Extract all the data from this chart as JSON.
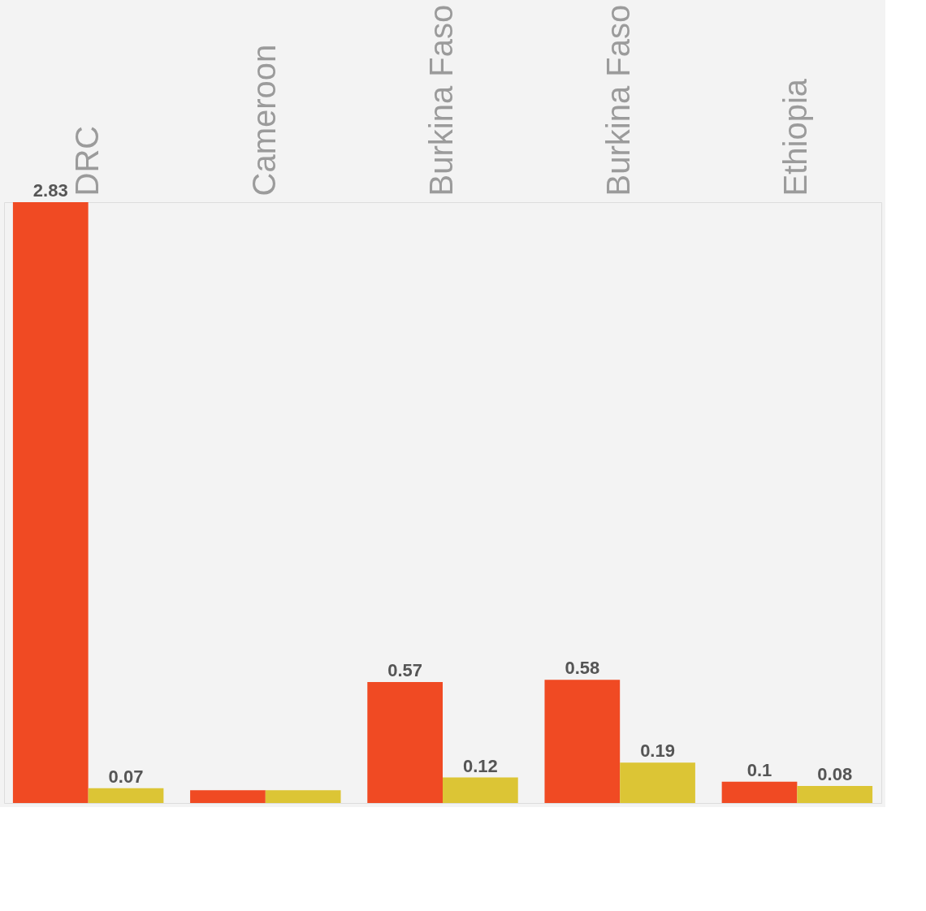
{
  "chart_data": {
    "type": "bar",
    "categories": [
      "DRC",
      "Cameroon",
      "Burkina Faso",
      "Burkina Faso",
      "Ethiopia"
    ],
    "series": [
      {
        "color": "#f04a23",
        "values": [
          2.83,
          0.06,
          0.57,
          0.58,
          0.1
        ],
        "value_labels": [
          "2.83",
          null,
          "0.57",
          "0.58",
          "0.1"
        ]
      },
      {
        "color": "#dcc535",
        "values": [
          0.07,
          0.06,
          0.12,
          0.19,
          0.08
        ],
        "value_labels": [
          "0.07",
          null,
          "0.12",
          "0.19",
          "0.08"
        ]
      }
    ]
  }
}
